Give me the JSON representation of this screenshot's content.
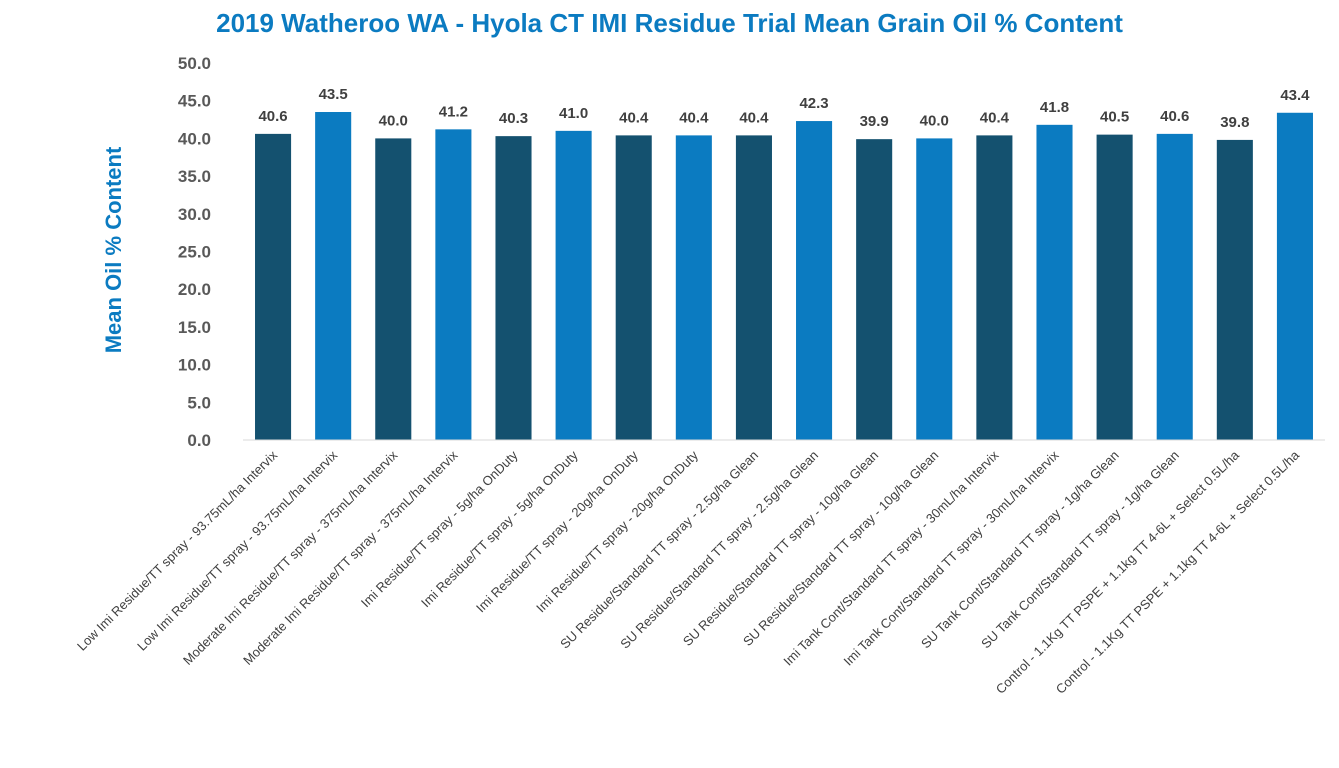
{
  "chart_data": {
    "type": "bar",
    "title": "2019 Watheroo WA - Hyola CT IMI Residue Trial Mean Grain Oil % Content",
    "ylabel": "Mean Oil % Content",
    "xlabel": "",
    "ylim": [
      0,
      50
    ],
    "ytick_step": 5,
    "ytick_labels": [
      "0.0",
      "5.0",
      "10.0",
      "15.0",
      "20.0",
      "25.0",
      "30.0",
      "35.0",
      "40.0",
      "45.0",
      "50.0"
    ],
    "grid": false,
    "legend": "none",
    "colors": [
      "#14516f",
      "#0b7bc1"
    ],
    "categories": [
      "Low Imi Residue/TT spray - 93.75mL/ha Intervix",
      "Low Imi Residue/TT spray - 93.75mL/ha Intervix",
      "Moderate Imi Residue/TT spray - 375mL/ha Intervix",
      "Moderate Imi Residue/TT spray - 375mL/ha Intervix",
      "Imi Residue/TT spray - 5g/ha OnDuty",
      "Imi Residue/TT spray - 5g/ha OnDuty",
      "Imi Residue/TT spray - 20g/ha OnDuty",
      "Imi Residue/TT spray - 20g/ha OnDuty",
      "SU Residue/Standard TT spray - 2.5g/ha Glean",
      "SU Residue/Standard TT spray - 2.5g/ha Glean",
      "SU Residue/Standard TT spray - 10g/ha Glean",
      "SU Residue/Standard TT spray - 10g/ha Glean",
      "Imi Tank Cont/Standard TT spray - 30mL/ha Intervix",
      "Imi Tank Cont/Standard TT spray - 30mL/ha Intervix",
      "SU Tank Cont/Standard TT spray - 1g/ha Glean",
      "SU Tank Cont/Standard TT spray - 1g/ha Glean",
      "Control - 1.1Kg TT PSPE + 1.1kg TT 4-6L + Select 0.5L/ha",
      "Control - 1.1Kg TT PSPE + 1.1kg TT 4-6L + Select 0.5L/ha"
    ],
    "values": [
      40.6,
      43.5,
      40.0,
      41.2,
      40.3,
      41.0,
      40.4,
      40.4,
      40.4,
      42.3,
      39.9,
      40.0,
      40.4,
      41.8,
      40.5,
      40.6,
      39.8,
      43.4
    ],
    "value_labels": [
      "40.6",
      "43.5",
      "40.0",
      "41.2",
      "40.3",
      "41.0",
      "40.4",
      "40.4",
      "40.4",
      "42.3",
      "39.9",
      "40.0",
      "40.4",
      "41.8",
      "40.5",
      "40.6",
      "39.8",
      "43.4"
    ]
  }
}
